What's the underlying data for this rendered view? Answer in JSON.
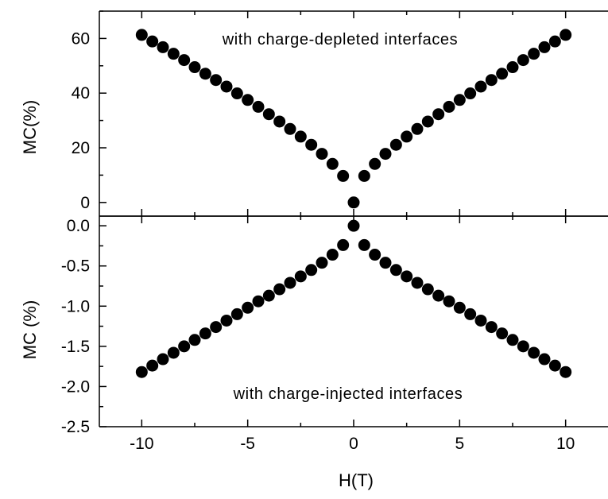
{
  "chart_data": [
    {
      "type": "scatter",
      "panel": "top",
      "title": "",
      "xlabel": "H(T)",
      "ylabel": "MC(%)",
      "xlim": [
        -12,
        12
      ],
      "ylim": [
        -5,
        70
      ],
      "xticks": [
        -10,
        -5,
        0,
        5,
        10
      ],
      "yticks": [
        0,
        20,
        40,
        60
      ],
      "ytick_labels": [
        "0",
        "20",
        "40",
        "60"
      ],
      "annotation": "with charge-depleted interfaces",
      "marker_color": "#000000",
      "grid": false,
      "legend": "none",
      "series": [
        {
          "x": [
            -10,
            -9.5,
            -9,
            -8.5,
            -8,
            -7.5,
            -7,
            -6.5,
            -6,
            -5.5,
            -5,
            -4.5,
            -4,
            -3.5,
            -3,
            -2.5,
            -2,
            -1.5,
            -1,
            -0.5,
            0,
            0.5,
            1,
            1.5,
            2,
            2.5,
            3,
            3.5,
            4,
            4.5,
            5,
            5.5,
            6,
            6.5,
            7,
            7.5,
            8,
            8.5,
            9,
            9.5,
            10
          ],
          "y": [
            61.3,
            58.9,
            56.8,
            54.4,
            52.1,
            49.5,
            47.1,
            44.8,
            42.4,
            39.9,
            37.5,
            35.0,
            32.3,
            29.6,
            26.9,
            24.1,
            21.1,
            17.8,
            14.1,
            9.7,
            0.0,
            9.7,
            14.1,
            17.8,
            21.1,
            24.1,
            26.9,
            29.6,
            32.3,
            35.0,
            37.5,
            39.9,
            42.4,
            44.8,
            47.1,
            49.5,
            52.1,
            54.4,
            56.8,
            58.9,
            61.3
          ]
        }
      ]
    },
    {
      "type": "scatter",
      "panel": "bottom",
      "title": "",
      "xlabel": "H(T)",
      "ylabel": "MC (%)",
      "xlim": [
        -12,
        12
      ],
      "ylim": [
        -2.5,
        0.12
      ],
      "xticks": [
        -10,
        -5,
        0,
        5,
        10
      ],
      "xtick_labels": [
        "-10",
        "-5",
        "0",
        "5",
        "10"
      ],
      "yticks": [
        0.0,
        -0.5,
        -1.0,
        -1.5,
        -2.0,
        -2.5
      ],
      "ytick_labels": [
        "0.0",
        "-0.5",
        "-1.0",
        "-1.5",
        "-2.0",
        "-2.5"
      ],
      "annotation": "with charge-injected interfaces",
      "marker_color": "#000000",
      "grid": false,
      "legend": "none",
      "series": [
        {
          "x": [
            -10,
            -9.5,
            -9,
            -8.5,
            -8,
            -7.5,
            -7,
            -6.5,
            -6,
            -5.5,
            -5,
            -4.5,
            -4,
            -3.5,
            -3,
            -2.5,
            -2,
            -1.5,
            -1,
            -0.5,
            0,
            0.5,
            1,
            1.5,
            2,
            2.5,
            3,
            3.5,
            4,
            4.5,
            5,
            5.5,
            6,
            6.5,
            7,
            7.5,
            8,
            8.5,
            9,
            9.5,
            10
          ],
          "y": [
            -1.82,
            -1.74,
            -1.66,
            -1.58,
            -1.5,
            -1.42,
            -1.34,
            -1.26,
            -1.18,
            -1.1,
            -1.02,
            -0.94,
            -0.87,
            -0.79,
            -0.71,
            -0.63,
            -0.55,
            -0.46,
            -0.36,
            -0.24,
            0.0,
            -0.24,
            -0.36,
            -0.46,
            -0.55,
            -0.63,
            -0.71,
            -0.79,
            -0.87,
            -0.94,
            -1.02,
            -1.1,
            -1.18,
            -1.26,
            -1.34,
            -1.42,
            -1.5,
            -1.58,
            -1.66,
            -1.74,
            -1.82
          ]
        }
      ]
    }
  ]
}
